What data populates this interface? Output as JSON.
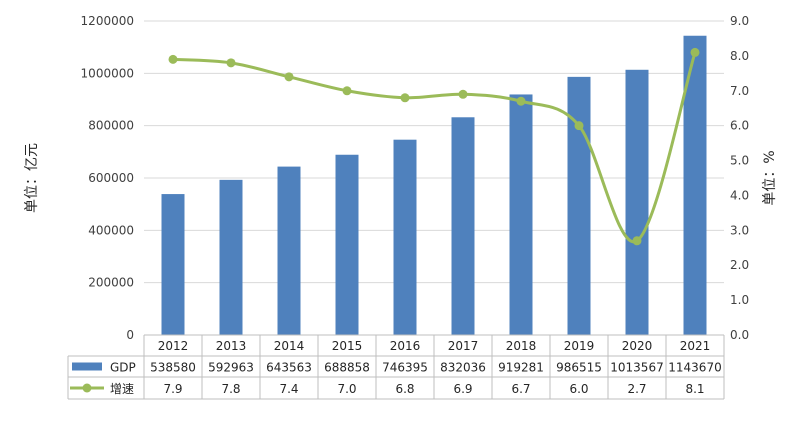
{
  "chart_data": {
    "type": "bar",
    "categories": [
      "2012",
      "2013",
      "2014",
      "2015",
      "2016",
      "2017",
      "2018",
      "2019",
      "2020",
      "2021"
    ],
    "series": [
      {
        "name": "GDP",
        "type": "bar",
        "axis": "left",
        "color": "#4f81bd",
        "values": [
          538580,
          592963,
          643563,
          688858,
          746395,
          832036,
          919281,
          986515,
          1013567,
          1143670
        ],
        "labels": [
          "538580",
          "592963",
          "643563",
          "688858",
          "746395",
          "832036",
          "919281",
          "986515",
          "1013567",
          "1143670"
        ]
      },
      {
        "name": "增速",
        "type": "line",
        "axis": "right",
        "color": "#9bbb59",
        "smooth": true,
        "markers": true,
        "values": [
          7.9,
          7.8,
          7.4,
          7.0,
          6.8,
          6.9,
          6.7,
          6.0,
          2.7,
          8.1
        ],
        "labels": [
          "7.9",
          "7.8",
          "7.4",
          "7.0",
          "6.8",
          "6.9",
          "6.7",
          "6.0",
          "2.7",
          "8.1"
        ]
      }
    ],
    "y_left": {
      "label": "单位：亿元",
      "min": 0,
      "max": 1200000,
      "step": 200000,
      "ticks": [
        "0",
        "200000",
        "400000",
        "600000",
        "800000",
        "1000000",
        "1200000"
      ]
    },
    "y_right": {
      "label": "单位：%",
      "min": 0,
      "max": 9,
      "step": 1,
      "ticks": [
        "0.0",
        "1.0",
        "2.0",
        "3.0",
        "4.0",
        "5.0",
        "6.0",
        "7.0",
        "8.0",
        "9.0"
      ]
    },
    "grid": true,
    "legend": "data-table-bottom"
  }
}
